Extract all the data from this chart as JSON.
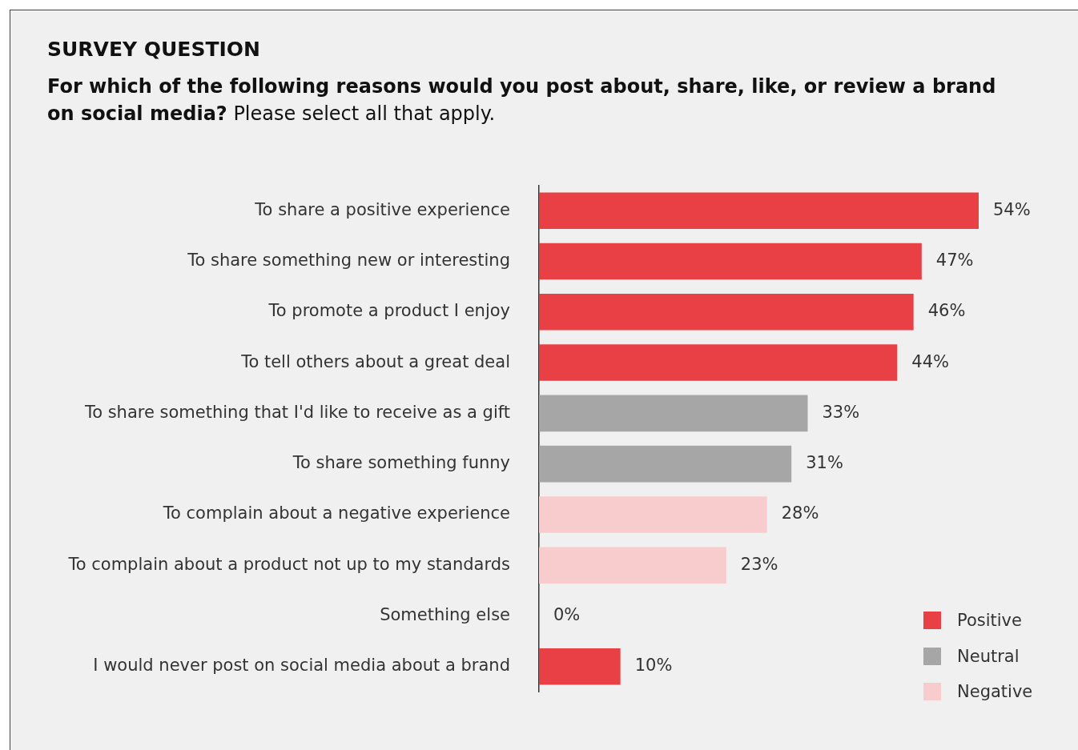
{
  "chart_data": {
    "type": "bar",
    "orientation": "horizontal",
    "stacked": true,
    "title": "SURVEY QUESTION",
    "subtitle": "For which of the following reasons would you post about, share, like, or review a brand on social media?",
    "annotations": [
      "Please select all that apply."
    ],
    "categories": [
      "To share a positive experience",
      "To share something new or interesting",
      "To promote a product I enjoy",
      "To tell others about a great deal",
      "To share something that I'd like to receive as a gift",
      "To share something funny",
      "To complain about a negative experience",
      "To complain about a product not up to my standards",
      "Something else",
      "I would never post on social media about a brand"
    ],
    "series": [
      {
        "name": "Positive",
        "color": "#e94045",
        "values": [
          54,
          47,
          46,
          44,
          null,
          null,
          null,
          null,
          0,
          10
        ],
        "value_labels": [
          "54%",
          "47%",
          "46%",
          "44%",
          null,
          null,
          null,
          null,
          "0%",
          "10%"
        ]
      },
      {
        "name": "Neutral",
        "color": "#a6a6a7",
        "values": [
          null,
          null,
          null,
          null,
          33,
          31,
          null,
          null,
          null,
          null
        ],
        "value_labels": [
          null,
          null,
          null,
          null,
          "33%",
          "31%",
          null,
          null,
          null,
          null
        ]
      },
      {
        "name": "Negative",
        "color": "#f8cccc",
        "values": [
          null,
          null,
          null,
          null,
          null,
          null,
          28,
          23,
          null,
          null
        ],
        "value_labels": [
          null,
          null,
          null,
          null,
          null,
          null,
          "28%",
          "23%",
          null,
          null
        ]
      }
    ],
    "legend": "bottom right",
    "grid": false,
    "tick_labels": "y"
  }
}
